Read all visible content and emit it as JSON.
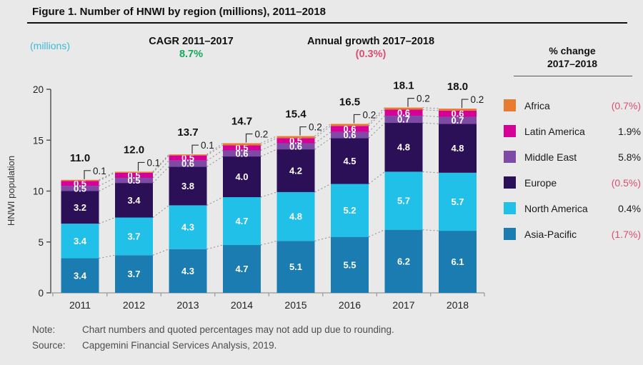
{
  "figure": {
    "title": "Figure 1. Number of HNWI by region (millions), 2011–2018",
    "units_label": "(millions)",
    "cagr": {
      "label": "CAGR 2011–2017",
      "value": "8.7%"
    },
    "annual_growth": {
      "label": "Annual growth 2017–2018",
      "value": "(0.3%)"
    },
    "note_label": "Note:",
    "note_text": "Chart numbers and quoted percentages may not add up due to rounding.",
    "source_label": "Source:",
    "source_text": "Capgemini Financial Services Analysis, 2019."
  },
  "legend": {
    "header_line1": "% change",
    "header_line2": "2017–2018",
    "items": [
      {
        "label": "Africa",
        "value": "(0.7%)",
        "negative": true,
        "color": "#e97b30"
      },
      {
        "label": "Latin America",
        "value": "1.9%",
        "negative": false,
        "color": "#d40098"
      },
      {
        "label": "Middle East",
        "value": "5.8%",
        "negative": false,
        "color": "#7d4ba5"
      },
      {
        "label": "Europe",
        "value": "(0.5%)",
        "negative": true,
        "color": "#2b1058"
      },
      {
        "label": "North America",
        "value": "0.4%",
        "negative": false,
        "color": "#21c0e8"
      },
      {
        "label": "Asia-Pacific",
        "value": "(1.7%)",
        "negative": true,
        "color": "#1a7cb0"
      }
    ]
  },
  "chart_data": {
    "type": "bar",
    "stacked": true,
    "title": "Number of HNWI by region (millions), 2011–2018",
    "ylabel": "HNWI population",
    "ylim": [
      0,
      20
    ],
    "yticks": [
      0,
      5,
      10,
      15,
      20
    ],
    "grid": false,
    "legend_position": "right",
    "categories": [
      "2011",
      "2012",
      "2013",
      "2014",
      "2015",
      "2016",
      "2017",
      "2018"
    ],
    "series": [
      {
        "name": "Asia-Pacific",
        "color": "#1a7cb0",
        "values": [
          3.4,
          3.7,
          4.3,
          4.7,
          5.1,
          5.5,
          6.2,
          6.1
        ]
      },
      {
        "name": "North America",
        "color": "#21c0e8",
        "values": [
          3.4,
          3.7,
          4.3,
          4.7,
          4.8,
          5.2,
          5.7,
          5.7
        ]
      },
      {
        "name": "Europe",
        "color": "#2b1058",
        "values": [
          3.2,
          3.4,
          3.8,
          4.0,
          4.2,
          4.5,
          4.8,
          4.8
        ]
      },
      {
        "name": "Middle East",
        "color": "#7d4ba5",
        "values": [
          0.5,
          0.5,
          0.6,
          0.6,
          0.6,
          0.6,
          0.7,
          0.7
        ]
      },
      {
        "name": "Latin America",
        "color": "#d40098",
        "values": [
          0.5,
          0.5,
          0.5,
          0.5,
          0.5,
          0.6,
          0.6,
          0.6
        ]
      },
      {
        "name": "Africa",
        "color": "#e97b30",
        "values": [
          0.1,
          0.1,
          0.1,
          0.2,
          0.2,
          0.2,
          0.2,
          0.2
        ]
      }
    ],
    "totals": [
      "11.0",
      "12.0",
      "13.7",
      "14.7",
      "15.4",
      "16.5",
      "18.1",
      "18.0"
    ]
  }
}
